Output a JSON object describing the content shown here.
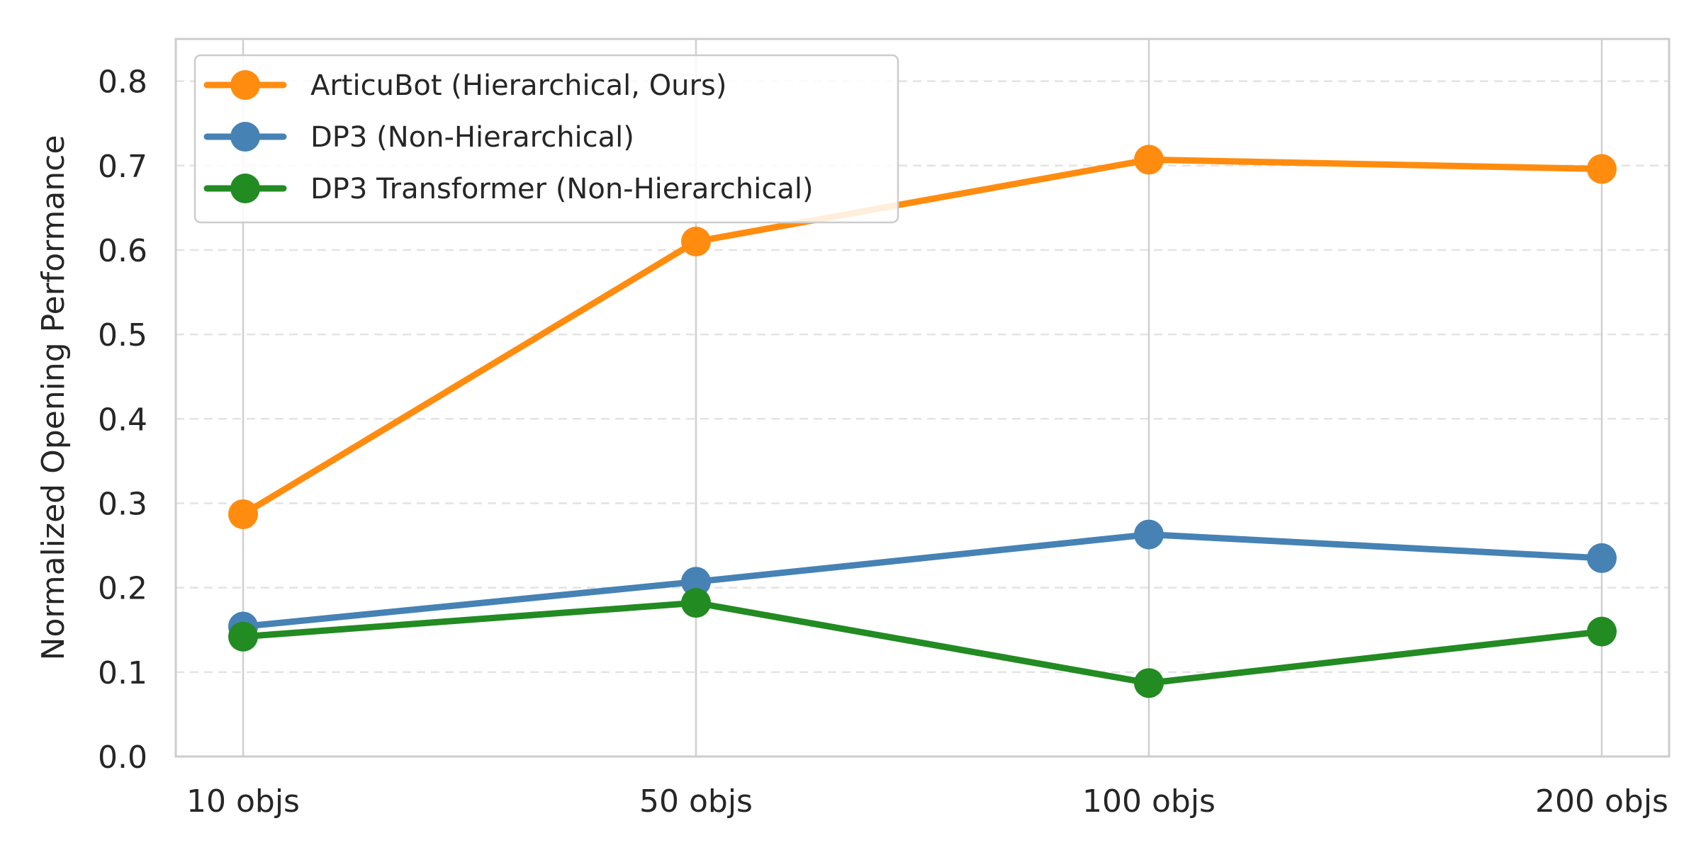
{
  "chart_data": {
    "type": "line",
    "title": "",
    "xlabel": "",
    "ylabel": "Normalized Opening Performance",
    "categories": [
      "10 objs",
      "50 objs",
      "100 objs",
      "200 objs"
    ],
    "ylim": [
      0.0,
      0.85
    ],
    "yticks": [
      0.0,
      0.1,
      0.2,
      0.3,
      0.4,
      0.5,
      0.6,
      0.7,
      0.8
    ],
    "ytick_labels": [
      "0.0",
      "0.1",
      "0.2",
      "0.3",
      "0.4",
      "0.5",
      "0.6",
      "0.7",
      "0.8"
    ],
    "grid": {
      "x": "solid",
      "y": "dashed"
    },
    "legend_position": "top-left",
    "series": [
      {
        "name": "ArticuBot (Hierarchical, Ours)",
        "color": "#FF8C0F",
        "values": [
          0.287,
          0.61,
          0.707,
          0.696
        ]
      },
      {
        "name": "DP3 (Non-Hierarchical)",
        "color": "#4682B4",
        "values": [
          0.154,
          0.207,
          0.263,
          0.235
        ]
      },
      {
        "name": "DP3 Transformer (Non-Hierarchical)",
        "color": "#228B22",
        "values": [
          0.142,
          0.182,
          0.087,
          0.148
        ]
      }
    ]
  }
}
